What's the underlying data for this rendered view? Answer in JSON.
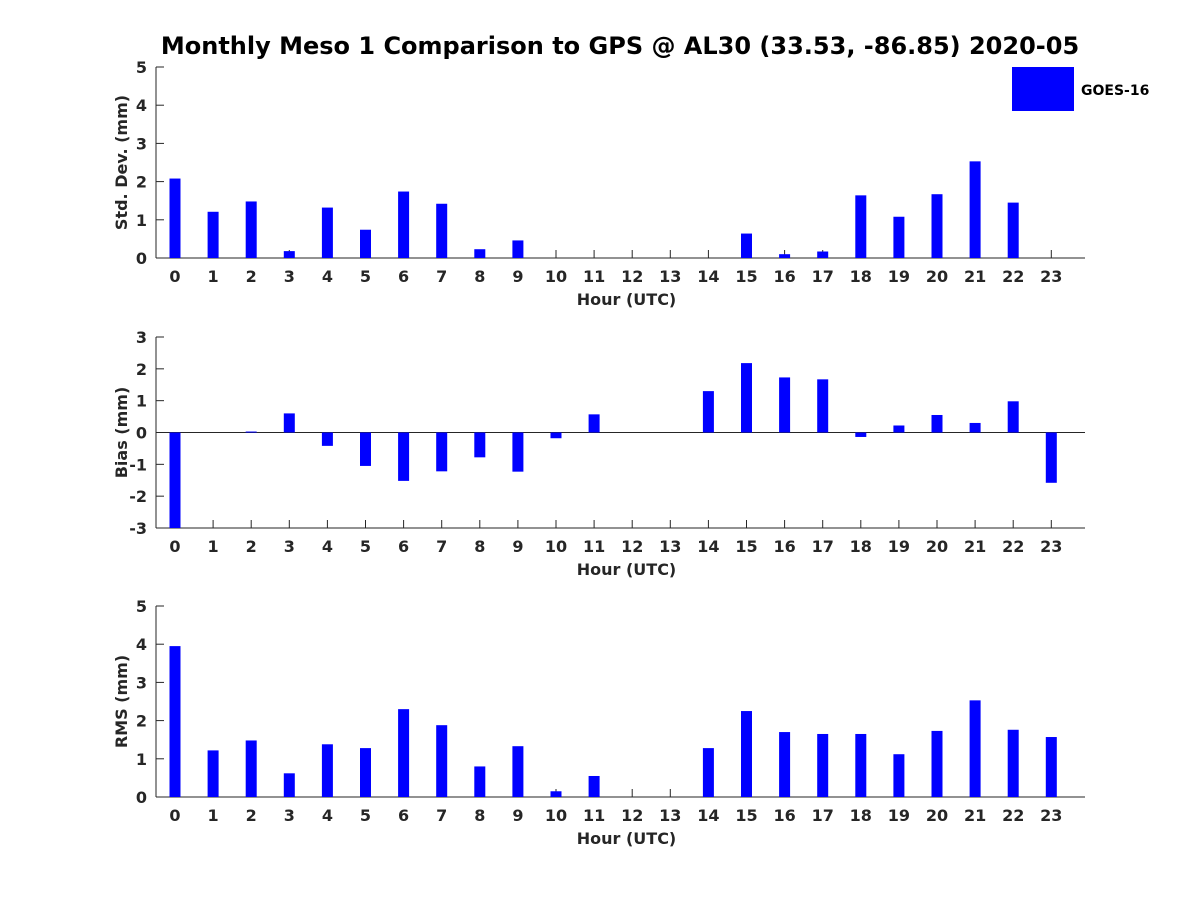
{
  "title": "Monthly Meso 1 Comparison to GPS @ AL30 (33.53, -86.85) 2020-05",
  "legend": {
    "label": "GOES-16",
    "color": "#0000ff",
    "placement": "top-right"
  },
  "colors": {
    "bar": "#0000ff",
    "axis": "#262626"
  },
  "chart_data": [
    {
      "type": "bar",
      "categories": [
        "0",
        "1",
        "2",
        "3",
        "4",
        "5",
        "6",
        "7",
        "8",
        "9",
        "10",
        "11",
        "12",
        "13",
        "14",
        "15",
        "16",
        "17",
        "18",
        "19",
        "20",
        "21",
        "22",
        "23"
      ],
      "xlabel": "Hour (UTC)",
      "ylabel": "Std. Dev. (mm)",
      "ylim": [
        0,
        5
      ],
      "yticks": [
        "0",
        "1",
        "2",
        "3",
        "4",
        "5"
      ],
      "grid": false,
      "series": [
        {
          "name": "GOES-16",
          "values": [
            2.08,
            1.21,
            1.48,
            0.18,
            1.32,
            0.74,
            1.74,
            1.42,
            0.23,
            0.46,
            0,
            0,
            0,
            0,
            0,
            0.64,
            0.1,
            0.17,
            1.64,
            1.08,
            1.67,
            2.53,
            1.45,
            0
          ]
        }
      ]
    },
    {
      "type": "bar",
      "categories": [
        "0",
        "1",
        "2",
        "3",
        "4",
        "5",
        "6",
        "7",
        "8",
        "9",
        "10",
        "11",
        "12",
        "13",
        "14",
        "15",
        "16",
        "17",
        "18",
        "19",
        "20",
        "21",
        "22",
        "23"
      ],
      "xlabel": "Hour (UTC)",
      "ylabel": "Bias (mm)",
      "ylim": [
        -3,
        3
      ],
      "yticks": [
        "-3",
        "-2",
        "-1",
        "0",
        "1",
        "2",
        "3"
      ],
      "grid": false,
      "series": [
        {
          "name": "GOES-16",
          "values": [
            -3.0,
            0,
            0.03,
            0.6,
            -0.42,
            -1.05,
            -1.52,
            -1.22,
            -0.78,
            -1.23,
            -0.18,
            0.57,
            0,
            0,
            1.3,
            2.18,
            1.73,
            1.67,
            -0.14,
            0.22,
            0.55,
            0.3,
            0.98,
            -1.58
          ]
        }
      ]
    },
    {
      "type": "bar",
      "categories": [
        "0",
        "1",
        "2",
        "3",
        "4",
        "5",
        "6",
        "7",
        "8",
        "9",
        "10",
        "11",
        "12",
        "13",
        "14",
        "15",
        "16",
        "17",
        "18",
        "19",
        "20",
        "21",
        "22",
        "23"
      ],
      "xlabel": "Hour (UTC)",
      "ylabel": "RMS (mm)",
      "ylim": [
        0,
        5
      ],
      "yticks": [
        "0",
        "1",
        "2",
        "3",
        "4",
        "5"
      ],
      "grid": false,
      "series": [
        {
          "name": "GOES-16",
          "values": [
            3.95,
            1.22,
            1.48,
            0.62,
            1.38,
            1.28,
            2.3,
            1.88,
            0.8,
            1.33,
            0.15,
            0.55,
            0,
            0,
            1.28,
            2.25,
            1.7,
            1.65,
            1.65,
            1.12,
            1.73,
            2.53,
            1.76,
            1.57
          ]
        }
      ]
    }
  ]
}
